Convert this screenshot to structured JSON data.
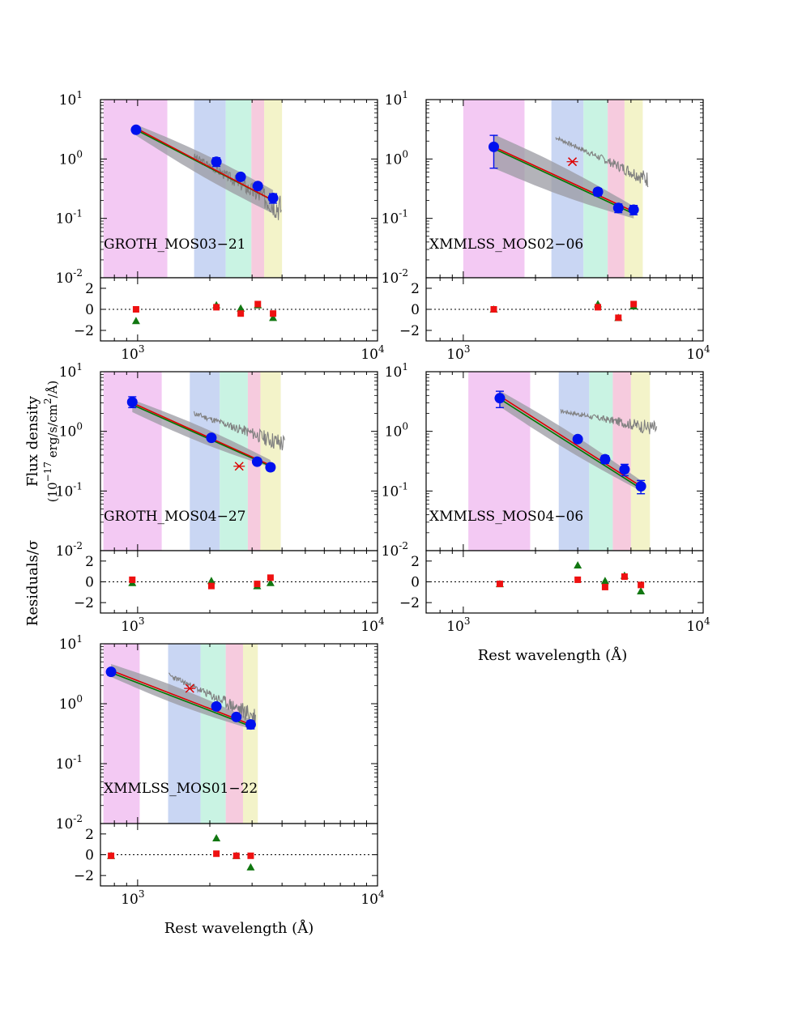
{
  "chart_data": {
    "type": "scatter",
    "layout": "grid",
    "y_axis_title": "Flux density",
    "y_axis_units": "(10−17 erg/s/cm2/Å)",
    "y_axis_units_parts": [
      "(10",
      "−17",
      " erg/s/cm",
      "2",
      "/Å)"
    ],
    "residual_axis_title": "Residuals/σ",
    "x_axis_title": "Rest wavelength (Å)",
    "x_scale": "log",
    "y_scale": "log",
    "xlim": [
      700,
      10000
    ],
    "ylim": [
      0.01,
      10
    ],
    "residual_ylim": [
      -3,
      3
    ],
    "residual_ticks": [
      "2",
      "0",
      "−2"
    ],
    "x_tick_labels": [
      {
        "base": "10",
        "exp": "3"
      },
      {
        "base": "10",
        "exp": "4"
      }
    ],
    "y_tick_labels": [
      {
        "base": "10",
        "exp": "1"
      },
      {
        "base": "10",
        "exp": "0"
      },
      {
        "base": "10",
        "exp": "-1"
      },
      {
        "base": "10",
        "exp": "-2"
      }
    ],
    "colors": {
      "photometry": "#0011ee",
      "model_red": "#dd0000",
      "model_green": "#007700",
      "band_shade": "#9a9aa2",
      "spectrum": "#808080",
      "residual_red": "#ee1111",
      "residual_green": "#117711",
      "bands": [
        "#f2c6f2",
        "#c6d4f2",
        "#c6f2e2",
        "#f6c8dc",
        "#f2f2c6"
      ]
    },
    "panels": [
      {
        "name": "GROTH_MOS03−21",
        "bands": [
          [
            720,
            1330
          ],
          [
            1720,
            2330
          ],
          [
            2330,
            2980
          ],
          [
            2980,
            3370
          ],
          [
            3370,
            4000
          ]
        ],
        "photometry": [
          {
            "x": 985,
            "y": 3.1,
            "elo": 0.3,
            "ehi": 0.3
          },
          {
            "x": 2130,
            "y": 0.9,
            "elo": 0.15,
            "ehi": 0.15
          },
          {
            "x": 2690,
            "y": 0.5,
            "elo": 0.06,
            "ehi": 0.06
          },
          {
            "x": 3170,
            "y": 0.35,
            "elo": 0.04,
            "ehi": 0.04
          },
          {
            "x": 3670,
            "y": 0.22,
            "elo": 0.04,
            "ehi": 0.04
          }
        ],
        "spectroscopic_point": null,
        "model_x": [
          985,
          3670
        ],
        "model_red": [
          3.3,
          0.2
        ],
        "model_green": [
          3.1,
          0.2
        ],
        "band_lower": [
          2.5,
          0.12
        ],
        "band_upper": [
          3.8,
          0.3
        ],
        "spectrum": {
          "x0": 1720,
          "x1": 3970,
          "y0": 1.1,
          "y1": 0.15,
          "noise": 0.35,
          "seed": 3
        },
        "residuals_red": [
          [
            985,
            0.0
          ],
          [
            2130,
            0.2
          ],
          [
            2690,
            -0.4
          ],
          [
            3170,
            0.5
          ],
          [
            3670,
            -0.4
          ]
        ],
        "residuals_green": [
          [
            985,
            -1.1
          ],
          [
            2130,
            0.4
          ],
          [
            2690,
            0.1
          ],
          [
            3170,
            0.4
          ],
          [
            3670,
            -0.8
          ]
        ]
      },
      {
        "name": "XMMLSS_MOS02−06",
        "bands": [
          [
            1000,
            1800
          ],
          [
            2330,
            3170
          ],
          [
            3170,
            4000
          ],
          [
            4000,
            4700
          ],
          [
            4700,
            5600
          ]
        ],
        "photometry": [
          {
            "x": 1340,
            "y": 1.6,
            "elo": 0.9,
            "ehi": 0.9
          },
          {
            "x": 3640,
            "y": 0.28,
            "elo": 0.04,
            "ehi": 0.04
          },
          {
            "x": 4430,
            "y": 0.15,
            "elo": 0.025,
            "ehi": 0.025
          },
          {
            "x": 5130,
            "y": 0.14,
            "elo": 0.025,
            "ehi": 0.025
          }
        ],
        "spectroscopic_point": {
          "x": 2850,
          "y": 0.9
        },
        "model_x": [
          1340,
          5130
        ],
        "model_red": [
          1.6,
          0.13
        ],
        "model_green": [
          1.5,
          0.12
        ],
        "band_lower": [
          0.7,
          0.1
        ],
        "band_upper": [
          2.6,
          0.16
        ],
        "spectrum": {
          "x0": 2430,
          "x1": 5900,
          "y0": 2.3,
          "y1": 0.45,
          "noise": 0.2,
          "seed": 7
        },
        "residuals_red": [
          [
            1340,
            0.0
          ],
          [
            3640,
            0.2
          ],
          [
            4430,
            -0.8
          ],
          [
            5130,
            0.5
          ]
        ],
        "residuals_green": [
          [
            1340,
            0.0
          ],
          [
            3640,
            0.5
          ],
          [
            4430,
            -0.8
          ],
          [
            5130,
            0.3
          ]
        ]
      },
      {
        "name": "GROTH_MOS04−27",
        "bands": [
          [
            720,
            1260
          ],
          [
            1650,
            2200
          ],
          [
            2200,
            2880
          ],
          [
            2880,
            3250
          ],
          [
            3250,
            3950
          ]
        ],
        "photometry": [
          {
            "x": 950,
            "y": 3.1,
            "elo": 0.6,
            "ehi": 0.7
          },
          {
            "x": 2030,
            "y": 0.78,
            "elo": 0.08,
            "ehi": 0.08
          },
          {
            "x": 3150,
            "y": 0.31,
            "elo": 0.03,
            "ehi": 0.03
          },
          {
            "x": 3580,
            "y": 0.25,
            "elo": 0.03,
            "ehi": 0.03
          }
        ],
        "spectroscopic_point": {
          "x": 2650,
          "y": 0.26
        },
        "model_x": [
          950,
          3580
        ],
        "model_red": [
          3.0,
          0.27
        ],
        "model_green": [
          2.8,
          0.26
        ],
        "band_lower": [
          2.1,
          0.25
        ],
        "band_upper": [
          3.4,
          0.33
        ],
        "spectrum": {
          "x0": 1720,
          "x1": 4100,
          "y0": 2.0,
          "y1": 0.6,
          "noise": 0.25,
          "seed": 11
        },
        "residuals_red": [
          [
            950,
            0.2
          ],
          [
            2030,
            -0.4
          ],
          [
            3150,
            -0.2
          ],
          [
            3580,
            0.4
          ]
        ],
        "residuals_green": [
          [
            950,
            -0.1
          ],
          [
            2030,
            0.1
          ],
          [
            3150,
            -0.4
          ],
          [
            3580,
            -0.1
          ]
        ]
      },
      {
        "name": "XMMLSS_MOS04−06",
        "bands": [
          [
            1050,
            1900
          ],
          [
            2500,
            3350
          ],
          [
            3350,
            4200
          ],
          [
            4200,
            5000
          ],
          [
            5000,
            6000
          ]
        ],
        "photometry": [
          {
            "x": 1420,
            "y": 3.6,
            "elo": 1.1,
            "ehi": 1.1
          },
          {
            "x": 3000,
            "y": 0.74,
            "elo": 0.06,
            "ehi": 0.06
          },
          {
            "x": 3900,
            "y": 0.34,
            "elo": 0.05,
            "ehi": 0.05
          },
          {
            "x": 4700,
            "y": 0.23,
            "elo": 0.05,
            "ehi": 0.05
          },
          {
            "x": 5500,
            "y": 0.12,
            "elo": 0.03,
            "ehi": 0.03
          }
        ],
        "spectroscopic_point": null,
        "model_x": [
          1420,
          5500
        ],
        "model_red": [
          3.9,
          0.12
        ],
        "model_green": [
          3.5,
          0.11
        ],
        "band_lower": [
          2.6,
          0.1
        ],
        "band_upper": [
          4.8,
          0.15
        ],
        "spectrum": {
          "x0": 2550,
          "x1": 6400,
          "y0": 2.2,
          "y1": 1.1,
          "noise": 0.2,
          "seed": 17
        },
        "residuals_red": [
          [
            1420,
            -0.2
          ],
          [
            3000,
            0.2
          ],
          [
            3900,
            -0.5
          ],
          [
            4700,
            0.5
          ],
          [
            5500,
            -0.3
          ]
        ],
        "residuals_green": [
          [
            1420,
            -0.2
          ],
          [
            3000,
            1.6
          ],
          [
            3900,
            0.1
          ],
          [
            4700,
            0.6
          ],
          [
            5500,
            -0.9
          ]
        ]
      },
      {
        "name": "XMMLSS_MOS01−22",
        "bands": [
          [
            720,
            1020
          ],
          [
            1340,
            1830
          ],
          [
            1830,
            2330
          ],
          [
            2330,
            2750
          ],
          [
            2750,
            3170
          ]
        ],
        "photometry": [
          {
            "x": 775,
            "y": 3.4,
            "elo": 0.4,
            "ehi": 0.4
          },
          {
            "x": 2130,
            "y": 0.9,
            "elo": 0.05,
            "ehi": 0.05
          },
          {
            "x": 2580,
            "y": 0.6,
            "elo": 0.05,
            "ehi": 0.05
          },
          {
            "x": 2960,
            "y": 0.45,
            "elo": 0.07,
            "ehi": 0.07
          }
        ],
        "spectroscopic_point": {
          "x": 1650,
          "y": 1.8
        },
        "model_x": [
          775,
          2960
        ],
        "model_red": [
          3.6,
          0.45
        ],
        "model_green": [
          3.3,
          0.42
        ],
        "band_lower": [
          2.8,
          0.38
        ],
        "band_upper": [
          4.6,
          0.55
        ],
        "spectrum": {
          "x0": 1350,
          "x1": 3100,
          "y0": 3.0,
          "y1": 0.6,
          "noise": 0.25,
          "seed": 23
        },
        "residuals_red": [
          [
            775,
            -0.1
          ],
          [
            2130,
            0.1
          ],
          [
            2580,
            -0.1
          ],
          [
            2960,
            -0.1
          ]
        ],
        "residuals_green": [
          [
            775,
            -0.1
          ],
          [
            2130,
            1.6
          ],
          [
            2580,
            -0.1
          ],
          [
            2960,
            -1.2
          ]
        ]
      }
    ]
  }
}
